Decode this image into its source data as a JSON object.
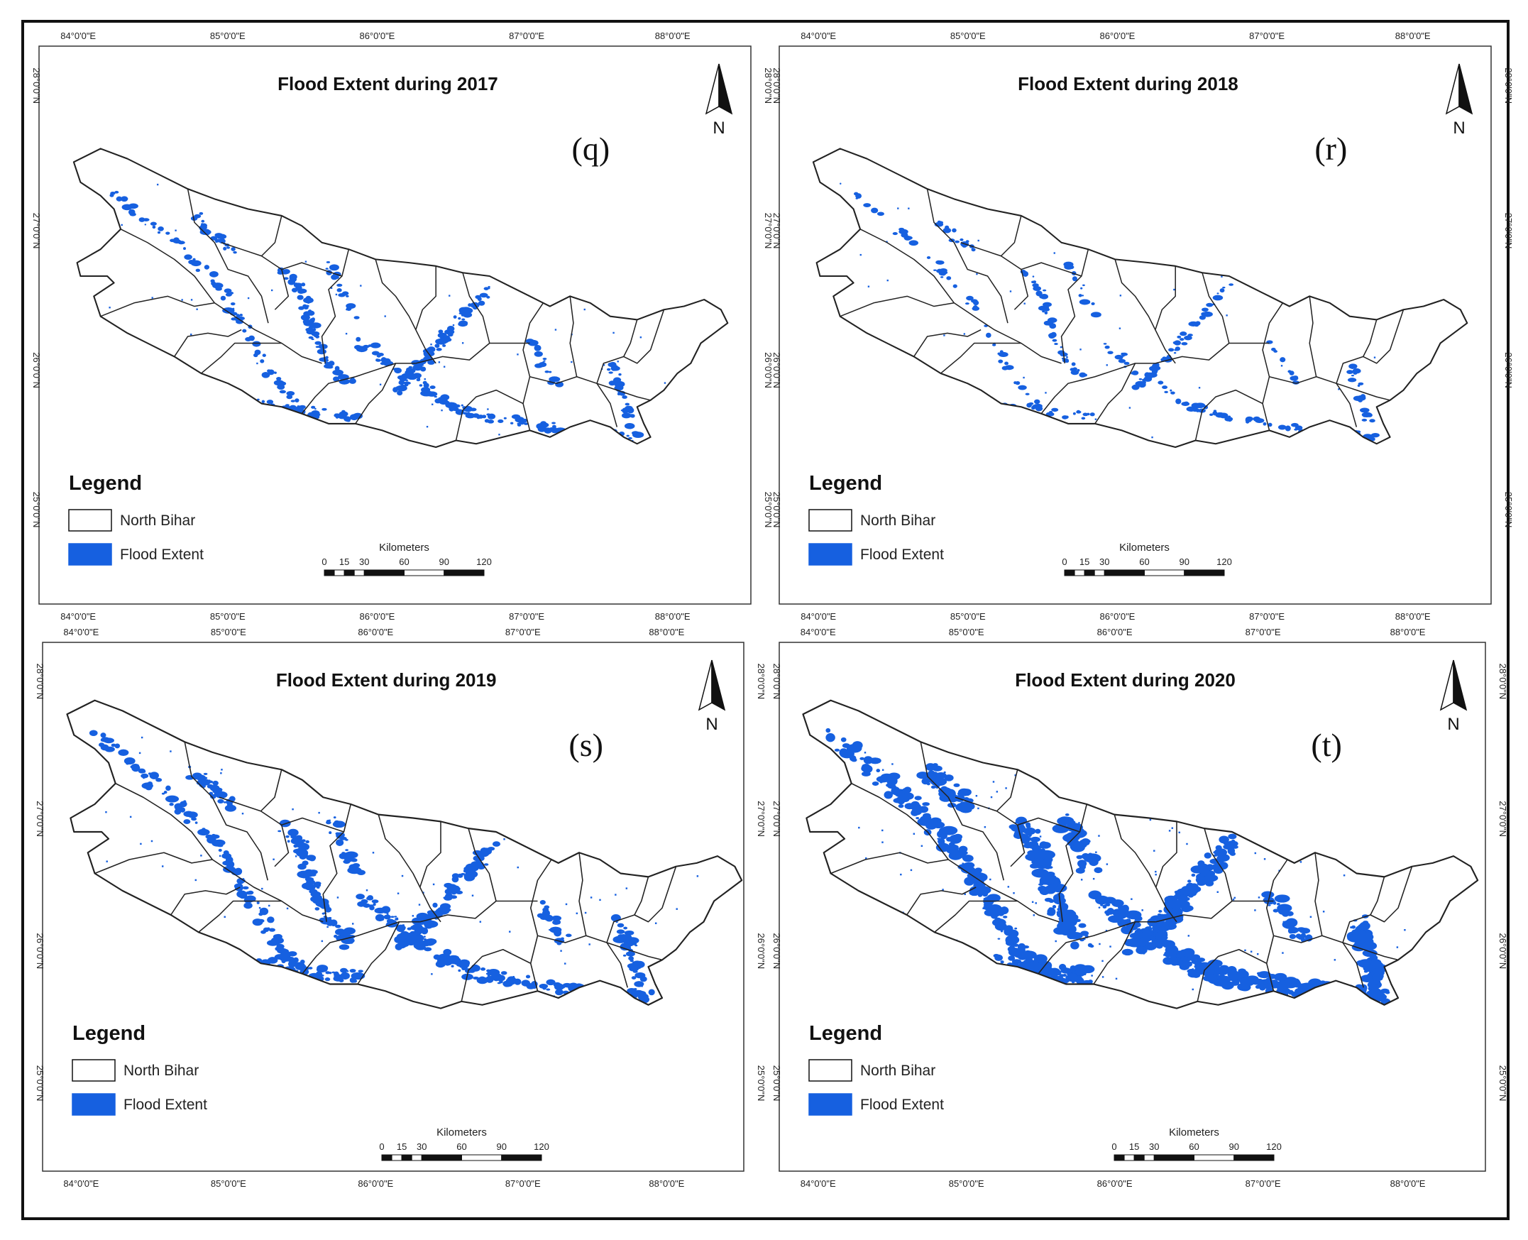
{
  "colors": {
    "flood": "#1660e0",
    "outline": "#222222",
    "frame": "#111111",
    "background": "#ffffff"
  },
  "longitude_labels": [
    "84°0'0\"E",
    "85°0'0\"E",
    "86°0'0\"E",
    "87°0'0\"E",
    "88°0'0\"E"
  ],
  "latitude_labels": [
    "28°0'0\"N",
    "27°0'0\"N",
    "26°0'0\"N",
    "25°0'0\"N"
  ],
  "legend": {
    "title": "Legend",
    "items": [
      {
        "label": "North Bihar",
        "swatch": "outline"
      },
      {
        "label": "Flood Extent",
        "swatch": "flood"
      }
    ]
  },
  "scale_bar": {
    "title": "Kilometers",
    "ticks": [
      "0",
      "15",
      "30",
      "60",
      "90",
      "120"
    ]
  },
  "north_arrow_label": "N",
  "panels": [
    {
      "id": "q",
      "title": "Flood Extent during 2017",
      "letter": "(q)",
      "year": 2017,
      "flood_level": 0.45
    },
    {
      "id": "r",
      "title": "Flood Extent during 2018",
      "letter": "(r)",
      "year": 2018,
      "flood_level": 0.3
    },
    {
      "id": "s",
      "title": "Flood Extent during 2019",
      "letter": "(s)",
      "year": 2019,
      "flood_level": 0.65
    },
    {
      "id": "t",
      "title": "Flood Extent during 2020",
      "letter": "(t)",
      "year": 2020,
      "flood_level": 1.0
    }
  ]
}
